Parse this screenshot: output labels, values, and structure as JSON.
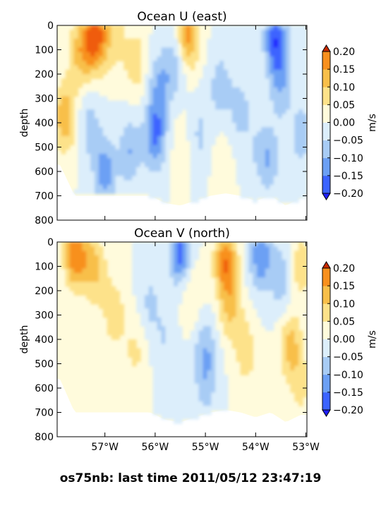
{
  "figure": {
    "suptitle": "os75nb: last time 2011/05/12 23:47:19"
  },
  "chart_data": [
    {
      "type": "heatmap",
      "title": "Ocean U (east)",
      "xlabel": "",
      "ylabel": "depth",
      "xlim": [
        -57.95,
        -52.98
      ],
      "ylim": [
        800,
        0
      ],
      "x_tick_values": [
        -57,
        -56,
        -55,
        -54,
        -53
      ],
      "x_tick_labels": [
        "57°W",
        "56°W",
        "55°W",
        "54°W",
        "53°W"
      ],
      "show_x_tick_labels": false,
      "y_tick_values": [
        0,
        100,
        200,
        300,
        400,
        500,
        600,
        700,
        800
      ],
      "y_tick_labels": [
        "0",
        "100",
        "200",
        "300",
        "400",
        "500",
        "600",
        "700",
        "800"
      ],
      "colorbar": {
        "label": "m/s",
        "levels": [
          -0.2,
          -0.15,
          -0.1,
          -0.05,
          0,
          0.05,
          0.1,
          0.15,
          0.2
        ],
        "tick_labels": [
          "−0.20",
          "−0.15",
          "−0.10",
          "−0.05",
          "0.00",
          "0.05",
          "0.10",
          "0.15",
          "0.20"
        ],
        "colors": [
          "#1f1fff",
          "#3c64ff",
          "#6ca0f4",
          "#a8ccf5",
          "#dceefb",
          "#fffbdc",
          "#fde28a",
          "#f8bf4a",
          "#f8901e",
          "#ef5b0c",
          "#c82a00"
        ],
        "extend": "both"
      },
      "data_coverage": {
        "lon": [
          -57.9,
          -57.6,
          -57.3,
          -57.0,
          -56.7,
          -56.4,
          -56.1,
          -55.8,
          -55.5,
          -55.2,
          -54.9,
          -54.6,
          -54.3,
          -54.0,
          -53.7,
          -53.4,
          -53.1
        ],
        "max_depth_m": [
          570,
          700,
          700,
          700,
          700,
          700,
          700,
          730,
          740,
          720,
          700,
          690,
          700,
          720,
          700,
          740,
          710
        ]
      },
      "features": [
        {
          "lon": -57.8,
          "depth": 380,
          "value": 0.14
        },
        {
          "lon": -57.55,
          "depth": 120,
          "value": 0.08
        },
        {
          "lon": -57.35,
          "depth": 80,
          "value": 0.1
        },
        {
          "lon": -57.15,
          "depth": 40,
          "value": 0.19
        },
        {
          "lon": -56.8,
          "depth": 50,
          "value": 0.07
        },
        {
          "lon": -56.4,
          "depth": 150,
          "value": 0.08
        },
        {
          "lon": -57.3,
          "depth": 420,
          "value": -0.07
        },
        {
          "lon": -57.0,
          "depth": 600,
          "value": -0.13
        },
        {
          "lon": -56.5,
          "depth": 520,
          "value": -0.1
        },
        {
          "lon": -56.0,
          "depth": 450,
          "value": -0.16
        },
        {
          "lon": -55.9,
          "depth": 250,
          "value": -0.1
        },
        {
          "lon": -55.6,
          "depth": 150,
          "value": -0.08
        },
        {
          "lon": -55.5,
          "depth": 500,
          "value": 0.03
        },
        {
          "lon": -55.35,
          "depth": 40,
          "value": 0.17
        },
        {
          "lon": -55.1,
          "depth": 450,
          "value": -0.06
        },
        {
          "lon": -54.7,
          "depth": 250,
          "value": -0.08
        },
        {
          "lon": -54.7,
          "depth": 550,
          "value": 0.03
        },
        {
          "lon": -54.3,
          "depth": 350,
          "value": -0.07
        },
        {
          "lon": -54.0,
          "depth": 500,
          "value": -0.03
        },
        {
          "lon": -53.75,
          "depth": 550,
          "value": -0.1
        },
        {
          "lon": -53.6,
          "depth": 60,
          "value": -0.19
        },
        {
          "lon": -53.5,
          "depth": 250,
          "value": -0.09
        },
        {
          "lon": -53.1,
          "depth": 450,
          "value": -0.08
        }
      ]
    },
    {
      "type": "heatmap",
      "title": "Ocean V (north)",
      "xlabel": "",
      "ylabel": "depth",
      "xlim": [
        -57.95,
        -52.98
      ],
      "ylim": [
        800,
        0
      ],
      "x_tick_values": [
        -57,
        -56,
        -55,
        -54,
        -53
      ],
      "x_tick_labels": [
        "57°W",
        "56°W",
        "55°W",
        "54°W",
        "53°W"
      ],
      "show_x_tick_labels": true,
      "y_tick_values": [
        0,
        100,
        200,
        300,
        400,
        500,
        600,
        700,
        800
      ],
      "y_tick_labels": [
        "0",
        "100",
        "200",
        "300",
        "400",
        "500",
        "600",
        "700",
        "800"
      ],
      "colorbar": {
        "label": "m/s",
        "levels": [
          -0.2,
          -0.15,
          -0.1,
          -0.05,
          0,
          0.05,
          0.1,
          0.15,
          0.2
        ],
        "tick_labels": [
          "−0.20",
          "−0.15",
          "−0.10",
          "−0.05",
          "0.00",
          "0.05",
          "0.10",
          "0.15",
          "0.20"
        ],
        "colors": [
          "#1f1fff",
          "#3c64ff",
          "#6ca0f4",
          "#a8ccf5",
          "#dceefb",
          "#fffbdc",
          "#fde28a",
          "#f8bf4a",
          "#f8901e",
          "#ef5b0c",
          "#c82a00"
        ],
        "extend": "both"
      },
      "data_coverage": {
        "lon": [
          -57.9,
          -57.6,
          -57.3,
          -57.0,
          -56.7,
          -56.4,
          -56.1,
          -55.8,
          -55.5,
          -55.2,
          -54.9,
          -54.6,
          -54.3,
          -54.0,
          -53.7,
          -53.4,
          -53.1
        ],
        "max_depth_m": [
          560,
          700,
          700,
          700,
          700,
          700,
          700,
          730,
          740,
          720,
          700,
          690,
          700,
          720,
          700,
          740,
          710
        ]
      },
      "features": [
        {
          "lon": -57.6,
          "depth": 50,
          "value": 0.18
        },
        {
          "lon": -57.3,
          "depth": 80,
          "value": 0.09
        },
        {
          "lon": -57.1,
          "depth": 150,
          "value": 0.06
        },
        {
          "lon": -56.8,
          "depth": 300,
          "value": 0.08
        },
        {
          "lon": -56.4,
          "depth": 450,
          "value": 0.06
        },
        {
          "lon": -57.3,
          "depth": 450,
          "value": 0.03
        },
        {
          "lon": -56.1,
          "depth": 250,
          "value": -0.06
        },
        {
          "lon": -55.8,
          "depth": 400,
          "value": -0.05
        },
        {
          "lon": -55.5,
          "depth": 40,
          "value": -0.18
        },
        {
          "lon": -55.3,
          "depth": 200,
          "value": 0.06
        },
        {
          "lon": -55.0,
          "depth": 450,
          "value": -0.09
        },
        {
          "lon": -55.0,
          "depth": 600,
          "value": -0.06
        },
        {
          "lon": -54.6,
          "depth": 80,
          "value": 0.19
        },
        {
          "lon": -54.5,
          "depth": 270,
          "value": 0.1
        },
        {
          "lon": -54.2,
          "depth": 450,
          "value": 0.08
        },
        {
          "lon": -53.9,
          "depth": 60,
          "value": -0.14
        },
        {
          "lon": -53.5,
          "depth": 150,
          "value": -0.08
        },
        {
          "lon": -53.3,
          "depth": 430,
          "value": 0.12
        },
        {
          "lon": -53.1,
          "depth": 100,
          "value": 0.08
        },
        {
          "lon": -53.1,
          "depth": 600,
          "value": 0.06
        }
      ]
    }
  ]
}
